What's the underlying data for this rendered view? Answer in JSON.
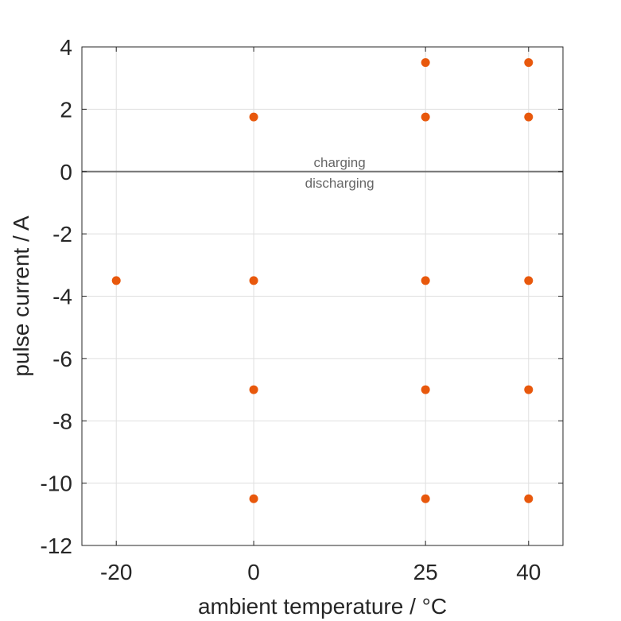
{
  "chart_data": {
    "type": "scatter",
    "xlabel": "ambient temperature / °C",
    "ylabel": "pulse current / A",
    "xlim": [
      -25,
      45
    ],
    "ylim": [
      -12,
      4
    ],
    "x_ticks": [
      -20,
      0,
      25,
      40
    ],
    "y_ticks": [
      4,
      2,
      0,
      -2,
      -4,
      -6,
      -8,
      -10,
      -12
    ],
    "grid": true,
    "marker_color": "#e8580c",
    "zero_line_color": "#737373",
    "points": [
      {
        "x": 25,
        "y": 3.5
      },
      {
        "x": 40,
        "y": 3.5
      },
      {
        "x": 0,
        "y": 1.75
      },
      {
        "x": 25,
        "y": 1.75
      },
      {
        "x": 40,
        "y": 1.75
      },
      {
        "x": -20,
        "y": -3.5
      },
      {
        "x": 0,
        "y": -3.5
      },
      {
        "x": 25,
        "y": -3.5
      },
      {
        "x": 40,
        "y": -3.5
      },
      {
        "x": 0,
        "y": -7
      },
      {
        "x": 25,
        "y": -7
      },
      {
        "x": 40,
        "y": -7
      },
      {
        "x": 0,
        "y": -10.5
      },
      {
        "x": 25,
        "y": -10.5
      },
      {
        "x": 40,
        "y": -10.5
      }
    ],
    "annotations": {
      "above": "charging",
      "below": "discharging",
      "x": 12.5
    }
  }
}
